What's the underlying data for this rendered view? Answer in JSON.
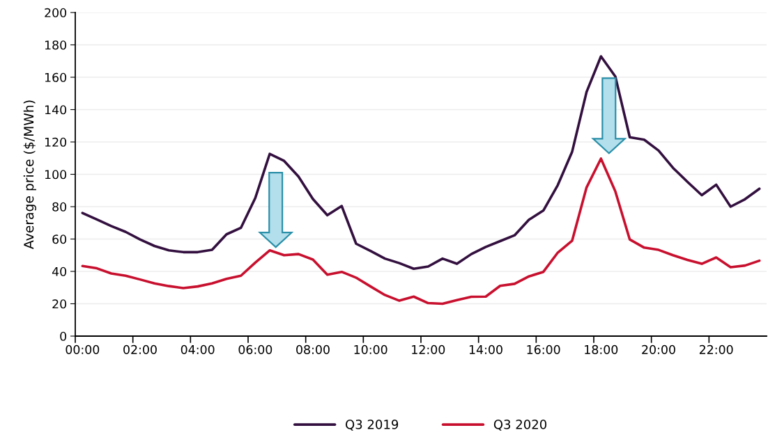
{
  "chart_data": {
    "type": "line",
    "ylabel": "Average price ($/MWh)",
    "categories": [
      "00:00",
      null,
      null,
      null,
      "02:00",
      null,
      null,
      null,
      "04:00",
      null,
      null,
      null,
      "06:00",
      null,
      null,
      null,
      "08:00",
      null,
      null,
      null,
      "10:00",
      null,
      null,
      null,
      "12:00",
      null,
      null,
      null,
      "14:00",
      null,
      null,
      null,
      "16:00",
      null,
      null,
      null,
      "18:00",
      null,
      null,
      null,
      "20:00",
      null,
      null,
      null,
      "22:00",
      null,
      null,
      null
    ],
    "series": [
      {
        "name": "Q3 2019",
        "color": "#33103f",
        "values": [
          76.1,
          72.1,
          68,
          64.4,
          59.7,
          55.7,
          53,
          51.9,
          51.9,
          53.3,
          62.9,
          66.9,
          85.4,
          112.6,
          108.3,
          98.6,
          84.7,
          74.7,
          80.4,
          57.1,
          52.6,
          47.9,
          45.1,
          41.6,
          43,
          47.9,
          44.7,
          50.7,
          55.1,
          58.7,
          62.3,
          71.9,
          77.6,
          93.3,
          114,
          150.9,
          172.9,
          160.4,
          122.9,
          121.4,
          114.7,
          104,
          95.4,
          87.1,
          93.6,
          80,
          84.6,
          91.1
        ]
      },
      {
        "name": "Q3 2020",
        "color": "#c8102e",
        "values": [
          43.3,
          41.9,
          38.7,
          37.3,
          35,
          32.6,
          30.9,
          29.7,
          30.7,
          32.6,
          35.4,
          37.3,
          45.4,
          53,
          50,
          50.7,
          47.3,
          38,
          39.7,
          36.1,
          30.7,
          25.4,
          21.9,
          24.4,
          20.4,
          20,
          22.3,
          24.3,
          24.4,
          31.1,
          32.3,
          36.9,
          39.7,
          51.6,
          59,
          91.9,
          109.7,
          89.4,
          59.7,
          54.7,
          53.3,
          50,
          47.1,
          44.7,
          48.6,
          42.6,
          43.6,
          46.6
        ]
      }
    ],
    "ylim": [
      0,
      200
    ],
    "yticks": [
      0,
      20,
      40,
      60,
      80,
      100,
      120,
      140,
      160,
      180,
      200
    ],
    "grid": "y",
    "legend": "bottom"
  }
}
